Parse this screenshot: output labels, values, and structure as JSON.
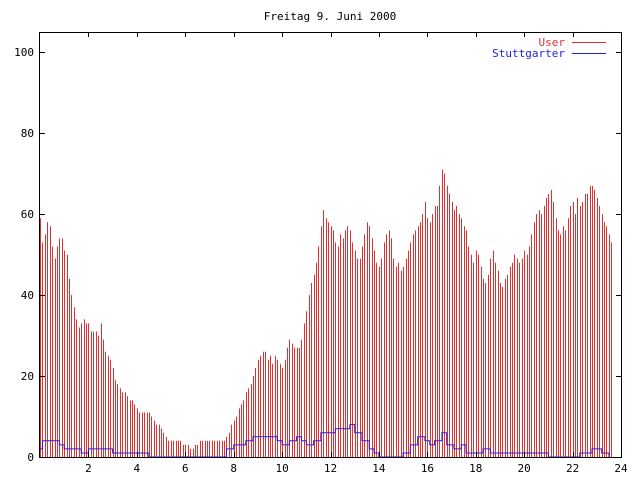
{
  "chart_data": {
    "type": "bar",
    "title": "Freitag 9. Juni 2000",
    "xlabel": "",
    "ylabel": "",
    "xlim": [
      0,
      24
    ],
    "ylim": [
      0,
      105
    ],
    "x_ticks": [
      2,
      4,
      6,
      8,
      10,
      12,
      14,
      16,
      18,
      20,
      22,
      24
    ],
    "y_ticks": [
      0,
      20,
      40,
      60,
      80,
      100
    ],
    "grid": false,
    "legend_position": "top-right",
    "series": [
      {
        "name": "User",
        "type": "bar",
        "color": "#e03030",
        "points": [
          [
            0.0,
            59
          ],
          [
            0.1,
            53
          ],
          [
            0.2,
            55
          ],
          [
            0.3,
            58
          ],
          [
            0.4,
            57
          ],
          [
            0.5,
            52
          ],
          [
            0.6,
            49
          ],
          [
            0.7,
            52
          ],
          [
            0.8,
            54
          ],
          [
            0.9,
            54
          ],
          [
            1.0,
            51
          ],
          [
            1.1,
            50
          ],
          [
            1.2,
            44
          ],
          [
            1.3,
            40
          ],
          [
            1.4,
            37
          ],
          [
            1.5,
            34
          ],
          [
            1.6,
            32
          ],
          [
            1.7,
            33
          ],
          [
            1.8,
            34
          ],
          [
            1.9,
            33
          ],
          [
            2.0,
            33
          ],
          [
            2.1,
            31
          ],
          [
            2.2,
            31
          ],
          [
            2.3,
            31
          ],
          [
            2.4,
            30
          ],
          [
            2.5,
            33
          ],
          [
            2.6,
            29
          ],
          [
            2.7,
            26
          ],
          [
            2.8,
            25
          ],
          [
            2.9,
            24
          ],
          [
            3.0,
            22
          ],
          [
            3.1,
            19
          ],
          [
            3.2,
            18
          ],
          [
            3.3,
            17
          ],
          [
            3.4,
            16
          ],
          [
            3.5,
            16
          ],
          [
            3.6,
            15
          ],
          [
            3.7,
            14
          ],
          [
            3.8,
            14
          ],
          [
            3.9,
            13
          ],
          [
            4.0,
            12
          ],
          [
            4.1,
            11
          ],
          [
            4.2,
            11
          ],
          [
            4.3,
            11
          ],
          [
            4.4,
            11
          ],
          [
            4.5,
            11
          ],
          [
            4.6,
            10
          ],
          [
            4.7,
            9
          ],
          [
            4.8,
            8
          ],
          [
            4.9,
            8
          ],
          [
            5.0,
            7
          ],
          [
            5.1,
            6
          ],
          [
            5.2,
            5
          ],
          [
            5.3,
            4
          ],
          [
            5.4,
            4
          ],
          [
            5.5,
            4
          ],
          [
            5.6,
            4
          ],
          [
            5.7,
            4
          ],
          [
            5.8,
            4
          ],
          [
            5.9,
            3
          ],
          [
            6.0,
            3
          ],
          [
            6.1,
            3
          ],
          [
            6.2,
            2
          ],
          [
            6.3,
            2
          ],
          [
            6.4,
            3
          ],
          [
            6.5,
            3
          ],
          [
            6.6,
            4
          ],
          [
            6.7,
            4
          ],
          [
            6.8,
            4
          ],
          [
            6.9,
            4
          ],
          [
            7.0,
            4
          ],
          [
            7.1,
            4
          ],
          [
            7.2,
            4
          ],
          [
            7.3,
            4
          ],
          [
            7.4,
            4
          ],
          [
            7.5,
            4
          ],
          [
            7.6,
            4
          ],
          [
            7.7,
            5
          ],
          [
            7.8,
            6
          ],
          [
            7.9,
            8
          ],
          [
            8.0,
            9
          ],
          [
            8.1,
            10
          ],
          [
            8.2,
            12
          ],
          [
            8.3,
            13
          ],
          [
            8.4,
            14
          ],
          [
            8.5,
            16
          ],
          [
            8.6,
            17
          ],
          [
            8.7,
            18
          ],
          [
            8.8,
            20
          ],
          [
            8.9,
            22
          ],
          [
            9.0,
            24
          ],
          [
            9.1,
            25
          ],
          [
            9.2,
            26
          ],
          [
            9.3,
            26
          ],
          [
            9.4,
            24
          ],
          [
            9.5,
            25
          ],
          [
            9.6,
            23
          ],
          [
            9.7,
            25
          ],
          [
            9.8,
            24
          ],
          [
            9.9,
            23
          ],
          [
            10.0,
            22
          ],
          [
            10.1,
            24
          ],
          [
            10.2,
            27
          ],
          [
            10.3,
            29
          ],
          [
            10.4,
            28
          ],
          [
            10.5,
            27
          ],
          [
            10.6,
            27
          ],
          [
            10.7,
            27
          ],
          [
            10.8,
            29
          ],
          [
            10.9,
            33
          ],
          [
            11.0,
            36
          ],
          [
            11.1,
            40
          ],
          [
            11.2,
            43
          ],
          [
            11.3,
            45
          ],
          [
            11.4,
            48
          ],
          [
            11.5,
            52
          ],
          [
            11.6,
            57
          ],
          [
            11.7,
            61
          ],
          [
            11.8,
            59
          ],
          [
            11.9,
            58
          ],
          [
            12.0,
            57
          ],
          [
            12.1,
            56
          ],
          [
            12.2,
            53
          ],
          [
            12.3,
            52
          ],
          [
            12.4,
            55
          ],
          [
            12.5,
            54
          ],
          [
            12.6,
            56
          ],
          [
            12.7,
            57
          ],
          [
            12.8,
            56
          ],
          [
            12.9,
            53
          ],
          [
            13.0,
            51
          ],
          [
            13.1,
            49
          ],
          [
            13.2,
            49
          ],
          [
            13.3,
            52
          ],
          [
            13.4,
            55
          ],
          [
            13.5,
            58
          ],
          [
            13.6,
            57
          ],
          [
            13.7,
            54
          ],
          [
            13.8,
            51
          ],
          [
            13.9,
            48
          ],
          [
            14.0,
            47
          ],
          [
            14.1,
            49
          ],
          [
            14.2,
            53
          ],
          [
            14.3,
            55
          ],
          [
            14.4,
            56
          ],
          [
            14.5,
            54
          ],
          [
            14.6,
            49
          ],
          [
            14.7,
            47
          ],
          [
            14.8,
            48
          ],
          [
            14.9,
            46
          ],
          [
            15.0,
            47
          ],
          [
            15.1,
            49
          ],
          [
            15.2,
            51
          ],
          [
            15.3,
            53
          ],
          [
            15.4,
            55
          ],
          [
            15.5,
            56
          ],
          [
            15.6,
            57
          ],
          [
            15.7,
            58
          ],
          [
            15.8,
            60
          ],
          [
            15.9,
            63
          ],
          [
            16.0,
            59
          ],
          [
            16.1,
            58
          ],
          [
            16.2,
            60
          ],
          [
            16.3,
            62
          ],
          [
            16.4,
            62
          ],
          [
            16.5,
            67
          ],
          [
            16.6,
            71
          ],
          [
            16.7,
            70
          ],
          [
            16.8,
            67
          ],
          [
            16.9,
            65
          ],
          [
            17.0,
            63
          ],
          [
            17.1,
            61
          ],
          [
            17.2,
            62
          ],
          [
            17.3,
            60
          ],
          [
            17.4,
            59
          ],
          [
            17.5,
            57
          ],
          [
            17.6,
            56
          ],
          [
            17.7,
            52
          ],
          [
            17.8,
            50
          ],
          [
            17.9,
            48
          ],
          [
            18.0,
            51
          ],
          [
            18.1,
            50
          ],
          [
            18.2,
            47
          ],
          [
            18.3,
            44
          ],
          [
            18.4,
            43
          ],
          [
            18.5,
            45
          ],
          [
            18.6,
            49
          ],
          [
            18.7,
            51
          ],
          [
            18.8,
            48
          ],
          [
            18.9,
            46
          ],
          [
            19.0,
            43
          ],
          [
            19.1,
            42
          ],
          [
            19.2,
            44
          ],
          [
            19.3,
            45
          ],
          [
            19.4,
            47
          ],
          [
            19.5,
            48
          ],
          [
            19.6,
            50
          ],
          [
            19.7,
            49
          ],
          [
            19.8,
            48
          ],
          [
            19.9,
            49
          ],
          [
            20.0,
            51
          ],
          [
            20.1,
            50
          ],
          [
            20.2,
            52
          ],
          [
            20.3,
            55
          ],
          [
            20.4,
            58
          ],
          [
            20.5,
            60
          ],
          [
            20.6,
            61
          ],
          [
            20.7,
            60
          ],
          [
            20.8,
            62
          ],
          [
            20.9,
            64
          ],
          [
            21.0,
            65
          ],
          [
            21.1,
            66
          ],
          [
            21.2,
            63
          ],
          [
            21.3,
            59
          ],
          [
            21.4,
            56
          ],
          [
            21.5,
            55
          ],
          [
            21.6,
            57
          ],
          [
            21.7,
            56
          ],
          [
            21.8,
            59
          ],
          [
            21.9,
            62
          ],
          [
            22.0,
            63
          ],
          [
            22.1,
            60
          ],
          [
            22.2,
            64
          ],
          [
            22.3,
            62
          ],
          [
            22.4,
            63
          ],
          [
            22.5,
            65
          ],
          [
            22.6,
            65
          ],
          [
            22.7,
            67
          ],
          [
            22.8,
            67
          ],
          [
            22.9,
            66
          ],
          [
            23.0,
            64
          ],
          [
            23.1,
            62
          ],
          [
            23.2,
            60
          ],
          [
            23.3,
            58
          ],
          [
            23.4,
            57
          ],
          [
            23.5,
            55
          ],
          [
            23.6,
            53
          ]
        ]
      },
      {
        "name": "Stuttgarter",
        "type": "line",
        "color": "#2020e0",
        "points": [
          [
            0.0,
            2
          ],
          [
            0.1,
            4
          ],
          [
            0.5,
            4
          ],
          [
            0.8,
            3
          ],
          [
            1.0,
            2
          ],
          [
            1.5,
            2
          ],
          [
            1.7,
            1
          ],
          [
            2.0,
            2
          ],
          [
            2.5,
            2
          ],
          [
            3.0,
            1
          ],
          [
            4.5,
            0
          ],
          [
            7.5,
            0
          ],
          [
            7.7,
            2
          ],
          [
            8.0,
            3
          ],
          [
            8.5,
            4
          ],
          [
            8.8,
            5
          ],
          [
            9.5,
            5
          ],
          [
            9.8,
            4
          ],
          [
            10.0,
            3
          ],
          [
            10.3,
            4
          ],
          [
            10.6,
            5
          ],
          [
            10.8,
            4
          ],
          [
            11.0,
            3
          ],
          [
            11.3,
            4
          ],
          [
            11.6,
            6
          ],
          [
            11.9,
            6
          ],
          [
            12.2,
            7
          ],
          [
            12.5,
            7
          ],
          [
            12.8,
            8
          ],
          [
            13.0,
            6
          ],
          [
            13.3,
            4
          ],
          [
            13.6,
            2
          ],
          [
            13.8,
            1
          ],
          [
            14.0,
            0
          ],
          [
            14.9,
            0
          ],
          [
            15.0,
            1
          ],
          [
            15.3,
            3
          ],
          [
            15.6,
            5
          ],
          [
            15.9,
            4
          ],
          [
            16.1,
            3
          ],
          [
            16.3,
            4
          ],
          [
            16.6,
            6
          ],
          [
            16.8,
            3
          ],
          [
            17.1,
            2
          ],
          [
            17.4,
            3
          ],
          [
            17.6,
            1
          ],
          [
            18.0,
            1
          ],
          [
            18.3,
            2
          ],
          [
            18.6,
            1
          ],
          [
            18.9,
            1
          ],
          [
            19.2,
            1
          ],
          [
            19.5,
            1
          ],
          [
            19.8,
            1
          ],
          [
            20.3,
            1
          ],
          [
            20.7,
            1
          ],
          [
            21.0,
            0
          ],
          [
            21.5,
            0
          ],
          [
            22.0,
            0
          ],
          [
            22.3,
            1
          ],
          [
            22.8,
            2
          ],
          [
            23.2,
            1
          ],
          [
            23.5,
            0
          ]
        ]
      }
    ]
  }
}
